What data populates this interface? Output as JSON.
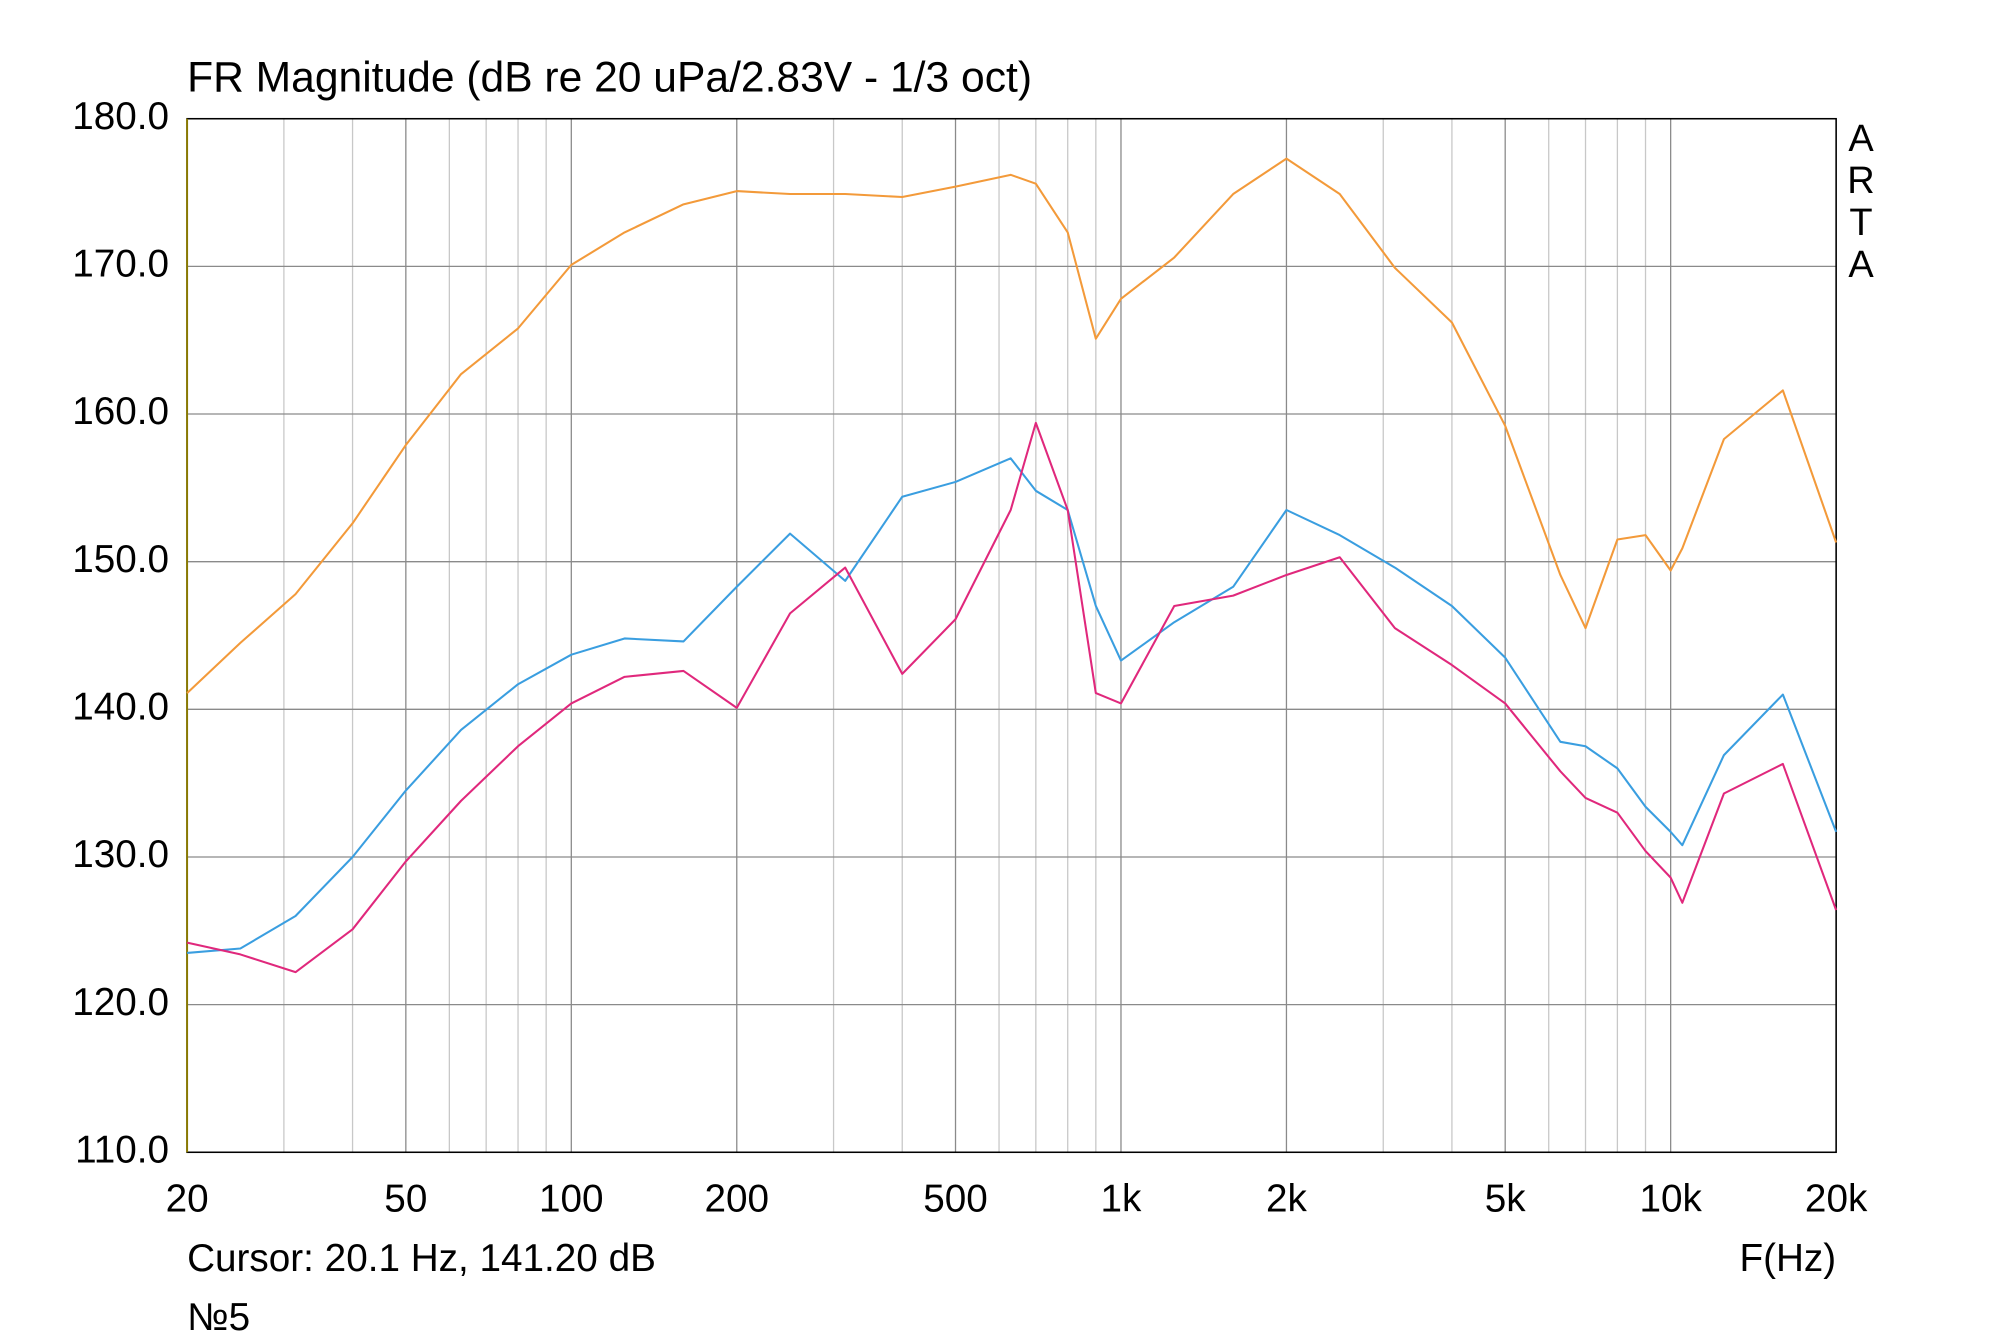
{
  "chart_data": {
    "type": "line",
    "title": "FR Magnitude (dB re 20 uPa/2.83V - 1/3 oct)",
    "watermark": "ARTA",
    "cursor_text": "Cursor: 20.1 Hz, 141.20 dB",
    "xlabel": "F(Hz)",
    "footnote": "№5",
    "log_x": true,
    "grid": true,
    "x": [
      20,
      25,
      31.5,
      40,
      50,
      63,
      80,
      100,
      125,
      160,
      200,
      250,
      315,
      400,
      500,
      630,
      700,
      800,
      900,
      1000,
      1250,
      1600,
      2000,
      2500,
      3150,
      4000,
      5000,
      6300,
      7000,
      8000,
      9000,
      10000,
      10500,
      12500,
      16000,
      20000
    ],
    "series": [
      {
        "color": "#f39a3a",
        "values": [
          141.1,
          144.5,
          147.8,
          152.6,
          157.9,
          162.7,
          165.8,
          170.1,
          172.3,
          174.2,
          175.1,
          174.9,
          174.9,
          174.7,
          175.4,
          176.2,
          175.6,
          172.3,
          165.1,
          167.8,
          170.6,
          174.9,
          177.3,
          174.9,
          169.9,
          166.2,
          159.2,
          149.1,
          145.5,
          151.5,
          151.8,
          149.4,
          150.9,
          158.3,
          161.6,
          151.3
        ]
      },
      {
        "color": "#3a9ee0",
        "values": [
          123.5,
          123.8,
          126.0,
          130.0,
          134.5,
          138.6,
          141.7,
          143.7,
          144.8,
          144.6,
          148.3,
          151.9,
          148.7,
          154.4,
          155.4,
          157.0,
          154.8,
          153.5,
          147.0,
          143.3,
          145.9,
          148.3,
          153.5,
          151.8,
          149.6,
          147.0,
          143.5,
          137.8,
          137.5,
          136.0,
          133.4,
          131.7,
          130.8,
          136.9,
          141.0,
          131.7
        ]
      },
      {
        "color": "#e0287c",
        "values": [
          124.2,
          123.4,
          122.2,
          125.1,
          129.7,
          133.8,
          137.5,
          140.4,
          142.2,
          142.6,
          140.1,
          146.5,
          149.6,
          142.4,
          146.1,
          153.5,
          159.4,
          153.5,
          141.1,
          140.4,
          147.0,
          147.7,
          149.1,
          150.3,
          145.5,
          143.0,
          140.4,
          135.8,
          134.0,
          133.0,
          130.4,
          128.6,
          126.9,
          134.3,
          136.3,
          126.4
        ]
      }
    ],
    "xlim": [
      20,
      20000
    ],
    "xticks": [
      20,
      50,
      100,
      200,
      500,
      {
        "value": 1000,
        "label": "1k"
      },
      {
        "value": 2000,
        "label": "2k"
      },
      {
        "value": 5000,
        "label": "5k"
      },
      {
        "value": 10000,
        "label": "10k"
      },
      {
        "value": 20000,
        "label": "20k"
      }
    ],
    "xminor": [
      30,
      40,
      60,
      70,
      80,
      90,
      300,
      400,
      600,
      700,
      800,
      900,
      3000,
      4000,
      6000,
      7000,
      8000,
      9000
    ],
    "ylim": [
      110,
      180
    ],
    "yticks": [
      {
        "value": 110,
        "label": "110.0"
      },
      {
        "value": 120,
        "label": "120.0"
      },
      {
        "value": 130,
        "label": "130.0"
      },
      {
        "value": 140,
        "label": "140.0"
      },
      {
        "value": 150,
        "label": "150.0"
      },
      {
        "value": 160,
        "label": "160.0"
      },
      {
        "value": 170,
        "label": "170.0"
      },
      {
        "value": 180,
        "label": "180.0"
      }
    ]
  }
}
